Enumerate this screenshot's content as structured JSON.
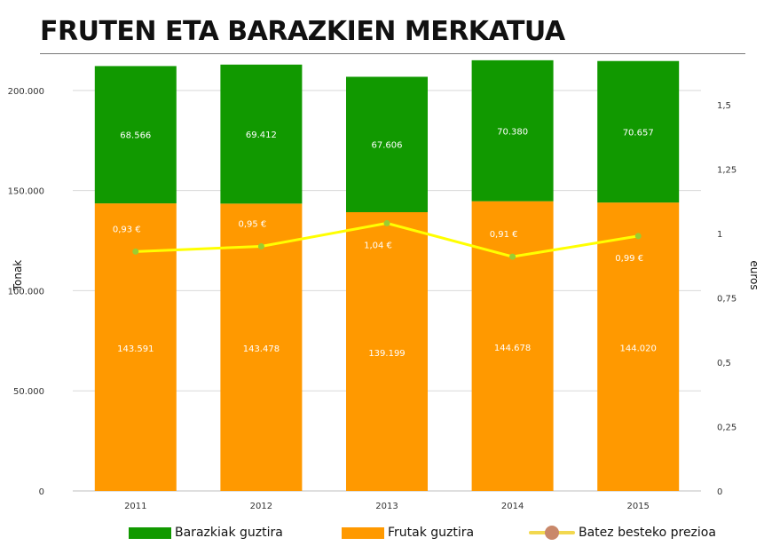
{
  "title": "FRUTEN ETA BARAZKIEN MERKATUA",
  "colors": {
    "barazkiak": "#119900",
    "frutak": "#ff9900",
    "prezioa": "#ffff00",
    "prezioa_marker": "#9acd32",
    "legend_marker": "#c9886a"
  },
  "chart_data": {
    "type": "bar",
    "stacked": true,
    "categories": [
      "2011",
      "2012",
      "2013",
      "2014",
      "2015"
    ],
    "series": [
      {
        "name": "Frutak guztira",
        "values": [
          143591,
          143478,
          139199,
          144678,
          144020
        ],
        "labels": [
          "143.591",
          "143.478",
          "139.199",
          "144.678",
          "144.020"
        ]
      },
      {
        "name": "Barazkiak guztira",
        "values": [
          68566,
          69412,
          67606,
          70380,
          70657
        ],
        "labels": [
          "68.566",
          "69.412",
          "67.606",
          "70.380",
          "70.657"
        ]
      }
    ],
    "line_series": {
      "name": "Batez besteko prezioa",
      "axis": "right",
      "values": [
        0.93,
        0.95,
        1.04,
        0.91,
        0.99
      ],
      "labels": [
        "0,93 €",
        "0,95 €",
        "1,04 €",
        "0,91 €",
        "0,99 €"
      ]
    },
    "ylabel": "Tonak",
    "y2label": "euros",
    "ylim": [
      0,
      215000
    ],
    "y2lim": [
      0,
      1.6725
    ],
    "yticks": [
      0,
      50000,
      100000,
      150000,
      200000
    ],
    "yticklabels": [
      "0",
      "50.000",
      "100.000",
      "150.000",
      "200.000"
    ],
    "y2ticks": [
      0,
      0.25,
      0.5,
      0.75,
      1,
      1.25,
      1.5
    ],
    "y2ticklabels": [
      "0",
      "0,25",
      "0,5",
      "0,75",
      "1",
      "1,25",
      "1,5"
    ],
    "grid": true,
    "legend_position": "bottom"
  },
  "legend": [
    {
      "label": "Barazkiak guztira"
    },
    {
      "label": "Frutak guztira"
    },
    {
      "label": "Batez besteko prezioa"
    }
  ]
}
